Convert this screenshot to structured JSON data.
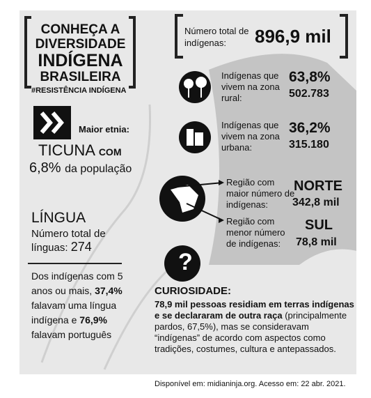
{
  "title": {
    "lines": [
      "CONHEÇA A",
      "DIVERSIDADE",
      "INDÍGENA",
      "BRASILEIRA"
    ],
    "hashtag": "#RESISTÊNCIA INDÍGENA"
  },
  "ethnicity": {
    "label": "Maior etnia:",
    "name": "TICUNA",
    "connector": "COM",
    "share": "6,8%",
    "share_text": "da população"
  },
  "language": {
    "heading": "LÍNGUA",
    "count_label_1": "Número total de",
    "count_label_2": "línguas:",
    "count": "274",
    "text_1": "Dos indígenas com 5 anos ou mais,",
    "pct_1": "37,4%",
    "text_2": "falavam uma língua indígena e",
    "pct_2": "76,9%",
    "text_3": "falavam português"
  },
  "total": {
    "label": "Número total de indígenas:",
    "value": "896,9 mil"
  },
  "rural": {
    "label": "Indígenas que vivem na zona rural:",
    "pct": "63,8%",
    "count": "502.783"
  },
  "urban": {
    "label": "Indígenas que vivem na zona urbana:",
    "pct": "36,2%",
    "count": "315.180"
  },
  "region_max": {
    "label": "Região com maior número de indígenas:",
    "name": "NORTE",
    "value": "342,8 mil"
  },
  "region_min": {
    "label": "Região com menor número de indígenas:",
    "name": "SUL",
    "value": "78,8 mil"
  },
  "curiosity": {
    "heading": "CURIOSIDADE:",
    "bold_text": "78,9 mil pessoas residiam em terras indígenas e se declararam de outra raça",
    "text": "(principalmente pardos, 67,5%), mas se consideravam “indígenas” de acordo com aspectos como tradições, costumes, cultura e antepassados."
  },
  "source": "Disponível em: midianinja.org. Acesso em: 22 abr. 2021."
}
